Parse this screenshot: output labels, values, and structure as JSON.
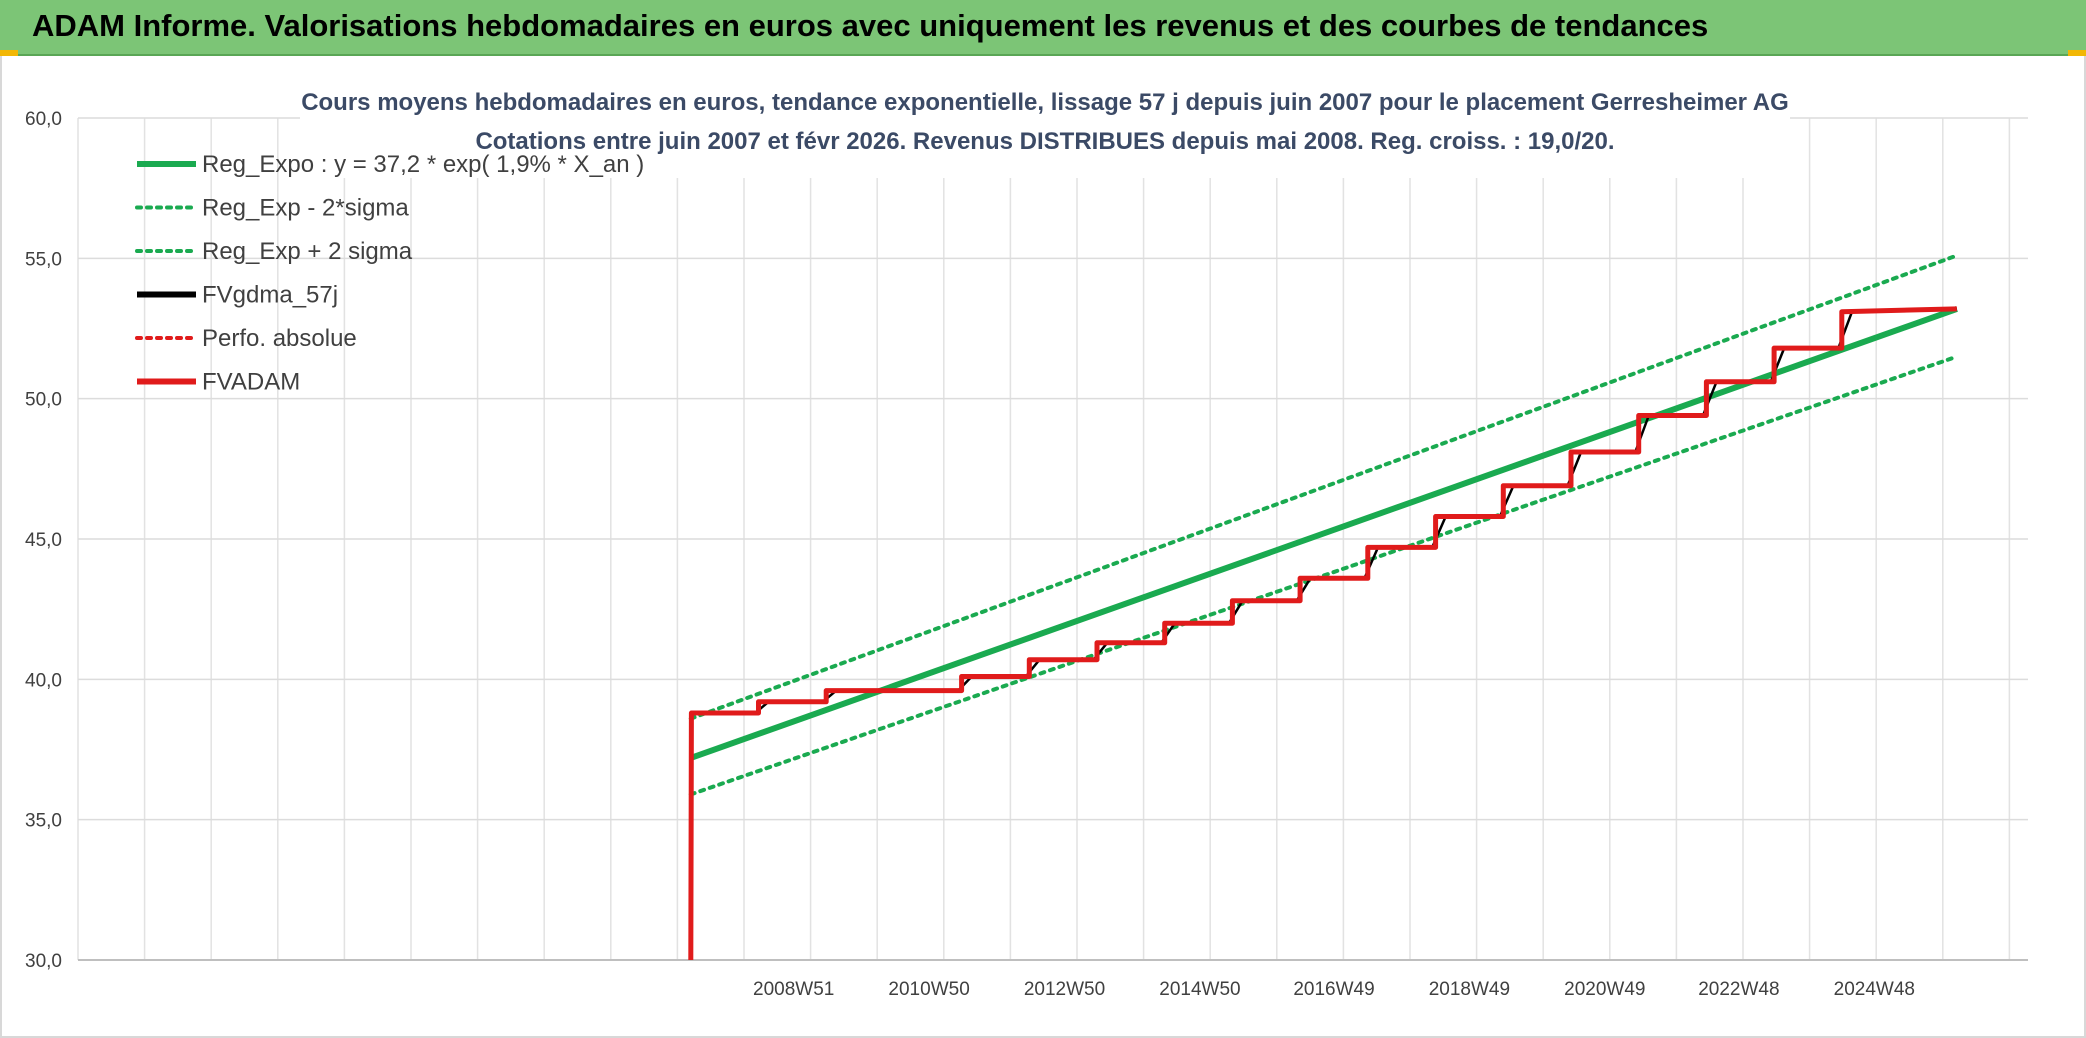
{
  "header": {
    "title": "ADAM Informe. Valorisations hebdomadaires en euros avec uniquement les revenus et des courbes de tendances"
  },
  "chart_data": {
    "type": "line",
    "title": "Cours moyens hebdomadaires en euros, tendance exponentielle, lissage 57 j depuis juin 2007 pour le placement Gerresheimer AG",
    "subtitle": "Cotations entre juin 2007 et févr 2026. Revenus DISTRIBUES depuis mai 2008. Reg. croiss. : 19,0/20.",
    "ylim": [
      30,
      60
    ],
    "xlim": [
      1998.4,
      2027.2
    ],
    "y_ticks": [
      "30,0",
      "35,0",
      "40,0",
      "45,0",
      "50,0",
      "55,0",
      "60,0"
    ],
    "y_tick_values": [
      30,
      35,
      40,
      45,
      50,
      55,
      60
    ],
    "x_ticks": [
      "2008W51",
      "2010W50",
      "2012W50",
      "2014W50",
      "2016W49",
      "2018W49",
      "2020W49",
      "2022W48",
      "2024W48"
    ],
    "x_tick_values": [
      2008.97,
      2010.97,
      2012.97,
      2014.97,
      2016.95,
      2018.95,
      2020.95,
      2022.93,
      2024.93
    ],
    "legend_position": "top-left",
    "grid": true,
    "series": [
      {
        "name": "Reg_Expo : y = 37,2 * exp( 1,9% *  X_an )",
        "color": "#1aaa50",
        "style": "solid",
        "x": [
          2007.45,
          2026.15
        ],
        "y": [
          37.2,
          53.2
        ]
      },
      {
        "name": "Reg_Exp - 2*sigma",
        "color": "#1aaa50",
        "style": "dotted",
        "x": [
          2007.45,
          2026.15
        ],
        "y": [
          35.9,
          51.5
        ]
      },
      {
        "name": "Reg_Exp + 2 sigma",
        "color": "#1aaa50",
        "style": "dotted",
        "x": [
          2007.45,
          2026.15
        ],
        "y": [
          38.6,
          55.1
        ]
      },
      {
        "name": "FVgdma_57j",
        "color": "#000000",
        "style": "solid",
        "x": [
          2007.45,
          2007.46,
          2008.4,
          2008.6,
          2009.4,
          2009.6,
          2010.4,
          2010.6,
          2011.4,
          2011.6,
          2012.4,
          2012.6,
          2013.4,
          2013.6,
          2014.4,
          2014.6,
          2015.4,
          2015.6,
          2016.4,
          2016.6,
          2017.4,
          2017.6,
          2018.4,
          2018.6,
          2019.4,
          2019.6,
          2020.4,
          2020.6,
          2021.4,
          2021.6,
          2022.4,
          2022.6,
          2023.4,
          2023.6,
          2024.4,
          2024.6,
          2026.15
        ],
        "y": [
          30.0,
          38.8,
          38.8,
          39.2,
          39.2,
          39.6,
          39.6,
          39.6,
          39.6,
          40.1,
          40.1,
          40.7,
          40.7,
          41.3,
          41.3,
          42.0,
          42.0,
          42.8,
          42.8,
          43.6,
          43.6,
          44.7,
          44.7,
          45.8,
          45.8,
          46.9,
          46.9,
          48.1,
          48.1,
          49.4,
          49.4,
          50.6,
          50.6,
          51.8,
          51.8,
          53.1,
          53.2
        ]
      },
      {
        "name": "Perfo. absolue",
        "color": "#e01b1b",
        "style": "dotted",
        "x": [],
        "y": []
      },
      {
        "name": "FVADAM",
        "color": "#e01b1b",
        "style": "solid",
        "x": [
          2007.45,
          2007.46,
          2008.45,
          2008.45,
          2009.45,
          2009.45,
          2010.45,
          2010.45,
          2011.45,
          2011.45,
          2012.45,
          2012.45,
          2013.45,
          2013.45,
          2014.45,
          2014.45,
          2015.45,
          2015.45,
          2016.45,
          2016.45,
          2017.45,
          2017.45,
          2018.45,
          2018.45,
          2019.45,
          2019.45,
          2020.45,
          2020.45,
          2021.45,
          2021.45,
          2022.45,
          2022.45,
          2023.45,
          2023.45,
          2024.45,
          2024.45,
          2026.15
        ],
        "y": [
          30.0,
          38.8,
          38.8,
          39.2,
          39.2,
          39.6,
          39.6,
          39.6,
          39.6,
          40.1,
          40.1,
          40.7,
          40.7,
          41.3,
          41.3,
          42.0,
          42.0,
          42.8,
          42.8,
          43.6,
          43.6,
          44.7,
          44.7,
          45.8,
          45.8,
          46.9,
          46.9,
          48.1,
          48.1,
          49.4,
          49.4,
          50.6,
          50.6,
          51.8,
          51.8,
          53.1,
          53.2
        ]
      }
    ]
  }
}
